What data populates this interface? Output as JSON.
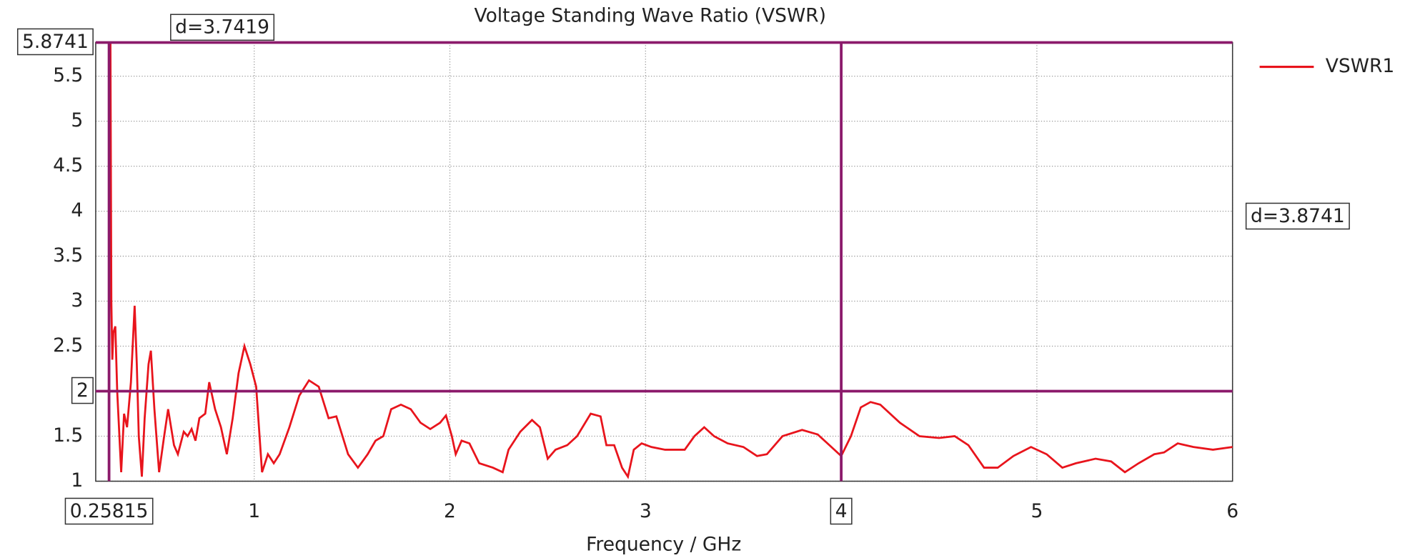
{
  "chart_data": {
    "type": "line",
    "title": "Voltage Standing Wave Ratio (VSWR)",
    "x_label": "Frequency / GHz",
    "xlim": [
      0.19,
      6
    ],
    "xticks": [
      1,
      2,
      3,
      4,
      5,
      6
    ],
    "ylim": [
      1,
      5.8741
    ],
    "yticks": [
      1,
      1.5,
      2,
      2.5,
      3,
      3.5,
      4,
      4.5,
      5,
      5.5
    ],
    "grid": true,
    "legend": "top-right",
    "x": [
      0.26,
      0.265,
      0.27,
      0.275,
      0.28,
      0.29,
      0.3,
      0.32,
      0.335,
      0.35,
      0.37,
      0.389,
      0.4,
      0.41,
      0.426,
      0.44,
      0.46,
      0.472,
      0.49,
      0.514,
      0.54,
      0.56,
      0.59,
      0.61,
      0.64,
      0.66,
      0.68,
      0.7,
      0.72,
      0.75,
      0.77,
      0.8,
      0.83,
      0.86,
      0.89,
      0.92,
      0.95,
      0.98,
      1.01,
      1.04,
      1.07,
      1.1,
      1.13,
      1.18,
      1.23,
      1.28,
      1.33,
      1.38,
      1.42,
      1.48,
      1.53,
      1.58,
      1.62,
      1.66,
      1.7,
      1.75,
      1.8,
      1.85,
      1.9,
      1.95,
      1.98,
      2.01,
      2.03,
      2.06,
      2.1,
      2.15,
      2.22,
      2.27,
      2.3,
      2.36,
      2.42,
      2.46,
      2.5,
      2.54,
      2.6,
      2.65,
      2.72,
      2.77,
      2.8,
      2.84,
      2.88,
      2.91,
      2.94,
      2.98,
      3.03,
      3.1,
      3.2,
      3.25,
      3.3,
      3.35,
      3.42,
      3.5,
      3.57,
      3.62,
      3.7,
      3.8,
      3.88,
      3.94,
      4.0,
      4.05,
      4.1,
      4.15,
      4.2,
      4.3,
      4.4,
      4.5,
      4.58,
      4.65,
      4.73,
      4.8,
      4.88,
      4.97,
      5.05,
      5.13,
      5.2,
      5.3,
      5.38,
      5.45,
      5.52,
      5.6,
      5.65,
      5.72,
      5.8,
      5.9,
      6.0
    ],
    "series": [
      {
        "name": "VSWR1",
        "color": "#e8141c",
        "values": [
          4.8,
          5.87,
          3.0,
          2.35,
          2.65,
          2.72,
          2.0,
          1.1,
          1.75,
          1.6,
          2.1,
          2.95,
          2.3,
          1.5,
          1.05,
          1.7,
          2.3,
          2.45,
          1.8,
          1.1,
          1.5,
          1.8,
          1.4,
          1.3,
          1.55,
          1.5,
          1.58,
          1.45,
          1.7,
          1.75,
          2.1,
          1.8,
          1.6,
          1.3,
          1.7,
          2.2,
          2.5,
          2.3,
          2.05,
          1.1,
          1.3,
          1.2,
          1.3,
          1.6,
          1.95,
          2.12,
          2.05,
          1.7,
          1.72,
          1.3,
          1.15,
          1.3,
          1.45,
          1.5,
          1.8,
          1.85,
          1.8,
          1.65,
          1.58,
          1.65,
          1.73,
          1.5,
          1.3,
          1.45,
          1.42,
          1.2,
          1.15,
          1.1,
          1.35,
          1.55,
          1.68,
          1.6,
          1.25,
          1.35,
          1.4,
          1.5,
          1.75,
          1.72,
          1.4,
          1.4,
          1.15,
          1.05,
          1.35,
          1.42,
          1.38,
          1.35,
          1.35,
          1.5,
          1.6,
          1.5,
          1.42,
          1.38,
          1.28,
          1.3,
          1.5,
          1.57,
          1.52,
          1.4,
          1.28,
          1.5,
          1.82,
          1.88,
          1.85,
          1.65,
          1.5,
          1.48,
          1.5,
          1.4,
          1.15,
          1.15,
          1.28,
          1.38,
          1.3,
          1.15,
          1.2,
          1.25,
          1.22,
          1.1,
          1.2,
          1.3,
          1.32,
          1.42,
          1.38,
          1.35,
          1.38
        ]
      }
    ],
    "markers": {
      "x": [
        0.25815,
        4
      ],
      "y": [
        5.8741,
        2
      ],
      "x_delta_label": "d=3.7419",
      "y_delta_label": "d=3.8741"
    }
  }
}
